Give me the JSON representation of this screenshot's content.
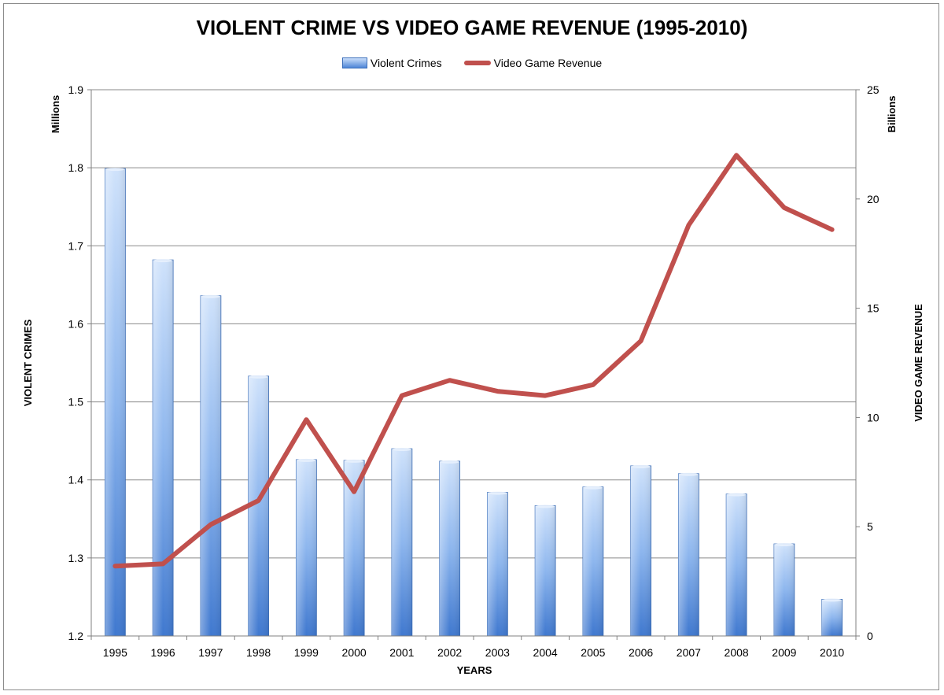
{
  "chart_data": {
    "type": "bar",
    "title": "VIOLENT CRIME VS VIDEO GAME REVENUE (1995-2010)",
    "xlabel": "YEARS",
    "ylabel_left": "VIOLENT CRIMES",
    "ylabel_left_unit": "Millions",
    "ylabel_right": "VIDEO GAME REVENUE",
    "ylabel_right_unit": "Billions",
    "categories": [
      "1995",
      "1996",
      "1997",
      "1998",
      "1999",
      "2000",
      "2001",
      "2002",
      "2003",
      "2004",
      "2005",
      "2006",
      "2007",
      "2008",
      "2009",
      "2010"
    ],
    "ylim_left": [
      1.2,
      1.9
    ],
    "yticks_left": [
      "1.2",
      "1.3",
      "1.4",
      "1.5",
      "1.6",
      "1.7",
      "1.8",
      "1.9"
    ],
    "ylim_right": [
      0,
      25
    ],
    "yticks_right": [
      "0",
      "5",
      "10",
      "15",
      "20",
      "25"
    ],
    "grid": true,
    "legend_position": "top",
    "series": [
      {
        "name": "Violent Crimes",
        "type": "bar",
        "axis": "left",
        "color": "#4f86d6",
        "values": [
          1.799,
          1.682,
          1.636,
          1.533,
          1.426,
          1.425,
          1.44,
          1.424,
          1.384,
          1.367,
          1.391,
          1.418,
          1.408,
          1.382,
          1.318,
          1.247
        ]
      },
      {
        "name": "Video Game Revenue",
        "type": "line",
        "axis": "right",
        "color": "#c0504d",
        "values": [
          3.2,
          3.3,
          5.1,
          6.2,
          9.9,
          6.6,
          11.0,
          11.7,
          11.2,
          11.0,
          11.5,
          13.5,
          18.8,
          22.0,
          19.6,
          18.6
        ]
      }
    ]
  }
}
